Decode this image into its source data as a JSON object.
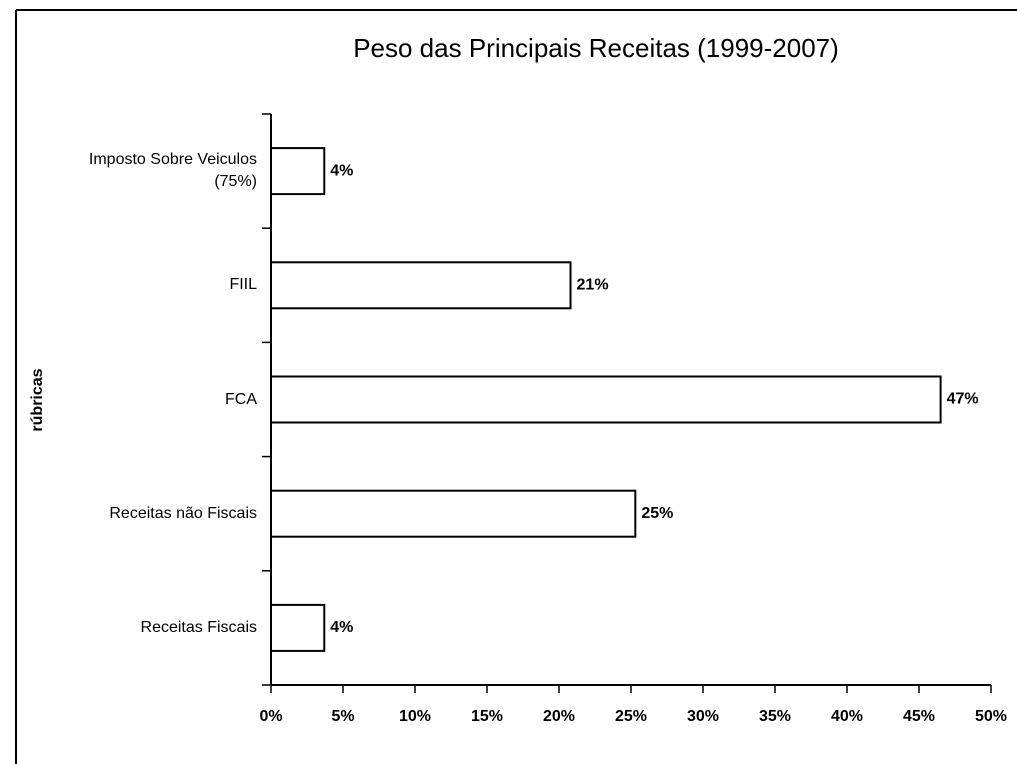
{
  "chart_data": {
    "type": "bar",
    "orientation": "horizontal",
    "title": "Peso das Principais Receitas (1999-2007)",
    "y_axis_label": "rúbricas",
    "categories": [
      "Imposto Sobre Veiculos (75%)",
      "FIIL",
      "FCA",
      "Receitas não Fiscais",
      "Receitas Fiscais"
    ],
    "values": [
      3.7,
      20.8,
      46.5,
      25.3,
      3.7
    ],
    "value_labels": [
      "4%",
      "21%",
      "47%",
      "25%",
      "4%"
    ],
    "color": "#ffffff",
    "xlim": [
      0,
      50
    ],
    "xticks": [
      {
        "value": 0,
        "label": "0%"
      },
      {
        "value": 5,
        "label": "5%"
      },
      {
        "value": 10,
        "label": "10%"
      },
      {
        "value": 15,
        "label": "15%"
      },
      {
        "value": 20,
        "label": "20%"
      },
      {
        "value": 25,
        "label": "25%"
      },
      {
        "value": 30,
        "label": "30%"
      },
      {
        "value": 35,
        "label": "35%"
      },
      {
        "value": 40,
        "label": "40%"
      },
      {
        "value": 45,
        "label": "45%"
      },
      {
        "value": 50,
        "label": "50%"
      }
    ],
    "grid": false
  }
}
